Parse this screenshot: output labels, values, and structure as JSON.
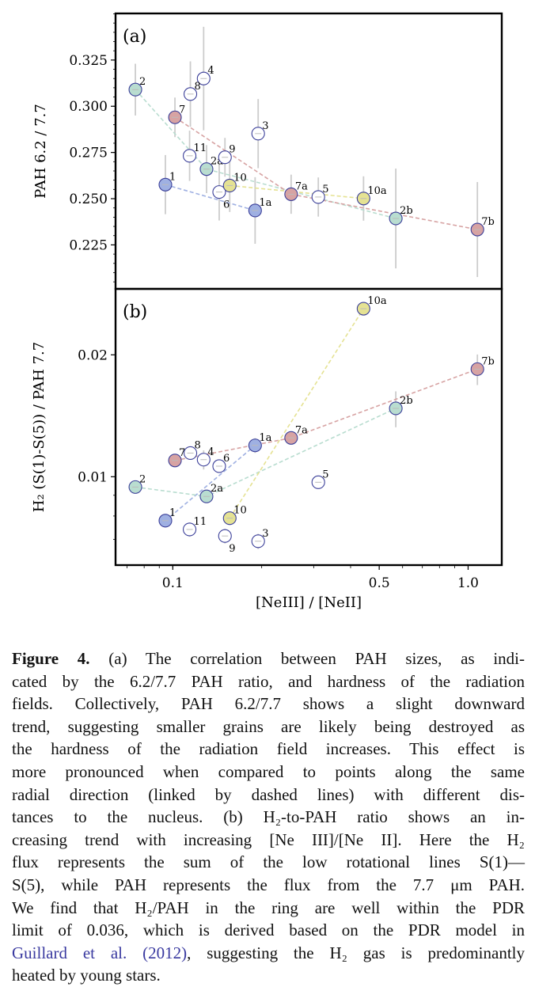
{
  "figure": {
    "chart_data": [
      {
        "type": "scatter",
        "panel_label": "(a)",
        "xlabel": "[NeIII] / [NeII]",
        "ylabel": "PAH 6.2 / 7.7",
        "xscale": "log",
        "yscale": "linear",
        "xlim": [
          0.064,
          1.3
        ],
        "ylim": [
          0.2012,
          0.3502
        ],
        "xticks": [
          0.1,
          0.5,
          1.0
        ],
        "xtick_labels": [
          "0.1",
          "0.5",
          "1.0"
        ],
        "yticks": [
          0.225,
          0.25,
          0.275,
          0.3,
          0.325
        ],
        "ytick_labels": [
          "0.225",
          "0.250",
          "0.275",
          "0.300",
          "0.325"
        ],
        "grid": false,
        "points": [
          {
            "label": "1",
            "x": 0.0944,
            "y": 0.2576,
            "yerr": 0.016,
            "group": "blue"
          },
          {
            "label": "1a",
            "x": 0.19,
            "y": 0.2436,
            "yerr": 0.018,
            "group": "blue"
          },
          {
            "label": "2",
            "x": 0.0747,
            "y": 0.309,
            "yerr": 0.014,
            "group": "teal"
          },
          {
            "label": "2a",
            "x": 0.1301,
            "y": 0.266,
            "yerr": 0.013,
            "group": "teal"
          },
          {
            "label": "2b",
            "x": 0.569,
            "y": 0.2393,
            "yerr": 0.027,
            "group": "teal"
          },
          {
            "label": "3",
            "x": 0.1946,
            "y": 0.2852,
            "yerr": 0.0187,
            "group": "open"
          },
          {
            "label": "4",
            "x": 0.1272,
            "y": 0.315,
            "yerr": 0.028,
            "group": "open"
          },
          {
            "label": "5",
            "x": 0.311,
            "y": 0.2509,
            "yerr": 0.0106,
            "group": "open"
          },
          {
            "label": "6",
            "x": 0.1436,
            "y": 0.2536,
            "yerr": 0.0154,
            "group": "open"
          },
          {
            "label": "7",
            "x": 0.1017,
            "y": 0.294,
            "yerr": 0.0107,
            "group": "red"
          },
          {
            "label": "7a",
            "x": 0.2516,
            "y": 0.2524,
            "yerr": 0.0106,
            "group": "red"
          },
          {
            "label": "7b",
            "x": 1.075,
            "y": 0.2333,
            "yerr": 0.0257,
            "group": "red"
          },
          {
            "label": "8",
            "x": 0.1147,
            "y": 0.3066,
            "yerr": 0.0177,
            "group": "open"
          },
          {
            "label": "9",
            "x": 0.1502,
            "y": 0.2724,
            "yerr": 0.0105,
            "group": "open"
          },
          {
            "label": "10",
            "x": 0.1559,
            "y": 0.2571,
            "yerr": 0.0143,
            "group": "yellow"
          },
          {
            "label": "10a",
            "x": 0.4425,
            "y": 0.2501,
            "yerr": 0.012,
            "group": "yellow"
          },
          {
            "label": "11",
            "x": 0.114,
            "y": 0.2732,
            "yerr": 0.0136,
            "group": "open"
          }
        ]
      },
      {
        "type": "scatter",
        "panel_label": "(b)",
        "xlabel": "[NeIII] / [NeII]",
        "ylabel": "H₂ (S(1)-S(5)) / PAH 7.7",
        "xscale": "log",
        "yscale": "log",
        "xlim": [
          0.064,
          1.3
        ],
        "ylim": [
          0.00605,
          0.0291
        ],
        "xticks": [
          0.1,
          0.5,
          1.0
        ],
        "xtick_labels": [
          "0.1",
          "0.5",
          "1.0"
        ],
        "yticks": [
          0.01,
          0.02
        ],
        "ytick_labels": [
          "0.01",
          "0.02"
        ],
        "grid": false,
        "points": [
          {
            "label": "1",
            "x": 0.0944,
            "y": 0.00779,
            "yerr": 0.0003,
            "group": "blue"
          },
          {
            "label": "1a",
            "x": 0.19,
            "y": 0.01195,
            "yerr": 0.0005,
            "group": "blue"
          },
          {
            "label": "2",
            "x": 0.0747,
            "y": 0.00943,
            "yerr": 0.0003,
            "group": "teal"
          },
          {
            "label": "2a",
            "x": 0.1301,
            "y": 0.00894,
            "yerr": 0.0003,
            "group": "teal"
          },
          {
            "label": "2b",
            "x": 0.569,
            "y": 0.01475,
            "yerr": 0.0015,
            "group": "teal"
          },
          {
            "label": "3",
            "x": 0.1946,
            "y": 0.00693,
            "yerr": 0.0003,
            "group": "open"
          },
          {
            "label": "4",
            "x": 0.1272,
            "y": 0.01102,
            "yerr": 0.0006,
            "group": "open"
          },
          {
            "label": "5",
            "x": 0.311,
            "y": 0.00969,
            "yerr": 0.0003,
            "group": "open"
          },
          {
            "label": "6",
            "x": 0.1436,
            "y": 0.01062,
            "yerr": 0.0003,
            "group": "open"
          },
          {
            "label": "7",
            "x": 0.1017,
            "y": 0.01097,
            "yerr": 0.0003,
            "group": "red"
          },
          {
            "label": "7a",
            "x": 0.2516,
            "y": 0.01247,
            "yerr": 0.0003,
            "group": "red"
          },
          {
            "label": "7b",
            "x": 1.075,
            "y": 0.01844,
            "yerr": 0.0016,
            "group": "red"
          },
          {
            "label": "8",
            "x": 0.1147,
            "y": 0.01144,
            "yerr": 0.0004,
            "group": "open"
          },
          {
            "label": "9",
            "x": 0.1502,
            "y": 0.00714,
            "yerr": 0.0003,
            "group": "open"
          },
          {
            "label": "10",
            "x": 0.1559,
            "y": 0.0079,
            "yerr": 0.0003,
            "group": "yellow"
          },
          {
            "label": "10a",
            "x": 0.4425,
            "y": 0.026,
            "yerr": 0.0004,
            "group": "yellow"
          },
          {
            "label": "11",
            "x": 0.114,
            "y": 0.00741,
            "yerr": 0.0003,
            "group": "open"
          }
        ]
      }
    ],
    "series_links": {
      "blue": [
        "1",
        "1a"
      ],
      "teal": [
        "2",
        "2a",
        "2b"
      ],
      "red": [
        "7",
        "7a",
        "7b"
      ],
      "yellow": [
        "10",
        "10a"
      ]
    },
    "colors": {
      "blue": "#9fb0e2",
      "teal": "#b9ddd0",
      "red": "#d7a3a3",
      "yellow": "#e5e293",
      "open": "#ffffff",
      "marker_edge": "#3b3f99",
      "errorbar": "#cccccc"
    }
  },
  "caption": {
    "lines": [
      [
        {
          "t": "Figure 4.",
          "cls": "bold"
        },
        {
          "t": "  (a) The correlation between PAH sizes, as indi-"
        }
      ],
      [
        {
          "t": "cated by the 6.2/7.7 PAH ratio, and hardness of the radiation"
        }
      ],
      [
        {
          "t": "fields.  Collectively, PAH 6.2/7.7 shows a slight downward"
        }
      ],
      [
        {
          "t": "trend, suggesting smaller grains are likely being destroyed as"
        }
      ],
      [
        {
          "t": "the hardness of the radiation field increases.  This effect is"
        }
      ],
      [
        {
          "t": "more pronounced when compared to points along the same"
        }
      ],
      [
        {
          "t": "radial direction (linked by dashed lines) with different dis-"
        }
      ],
      [
        {
          "t": "tances to the nucleus.  (b) H₂-to-PAH ratio shows an in-"
        }
      ],
      [
        {
          "t": "creasing trend with increasing [Ne III]/[Ne II].  Here the H₂"
        }
      ],
      [
        {
          "t": "flux represents the sum of the low rotational lines S(1)—"
        }
      ],
      [
        {
          "t": "S(5), while PAH represents the flux from the 7.7 μm PAH."
        }
      ],
      [
        {
          "t": "We find that H₂/PAH in the ring are well within the PDR"
        }
      ],
      [
        {
          "t": "limit of 0.036, which is derived based on the PDR model in"
        }
      ],
      [
        {
          "t": "Guillard et al. (2012)",
          "cls": "link"
        },
        {
          "t": ", suggesting the H₂ gas is predominantly"
        }
      ],
      [
        {
          "t": "heated by young stars."
        }
      ]
    ]
  }
}
